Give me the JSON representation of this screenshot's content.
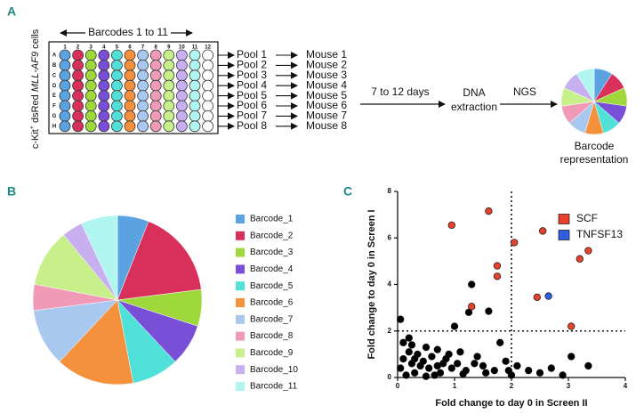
{
  "panel_labels": [
    "A",
    "B",
    "C"
  ],
  "diagram": {
    "barcodes_label": "Barcodes 1 to 11",
    "cell_label": {
      "prefix": "c-Kit",
      "superscript": "+",
      "middle": " dsRed ",
      "italic": "MLL-AF9",
      "suffix": " cells"
    },
    "row_labels": [
      "A",
      "B",
      "C",
      "D",
      "E",
      "F",
      "G",
      "H"
    ],
    "column_labels": [
      "1",
      "2",
      "3",
      "4",
      "5",
      "6",
      "7",
      "8",
      "9",
      "10",
      "11",
      "12"
    ],
    "pools": [
      "Pool 1",
      "Pool 2",
      "Pool 3",
      "Pool 4",
      "Pool 5",
      "Pool 6",
      "Pool 7",
      "Pool 8"
    ],
    "mice": [
      "Mouse 1",
      "Mouse 2",
      "Mouse 3",
      "Mouse 4",
      "Mouse 5",
      "Mouse 6",
      "Mouse 7",
      "Mouse 8"
    ],
    "duration": "7 to 12 days",
    "extraction": [
      "DNA",
      "extraction"
    ],
    "ngs": "NGS",
    "result": [
      "Barcode",
      "representation"
    ]
  },
  "chart_data": [
    {
      "type": "pie",
      "categories": [
        "Barcode_1",
        "Barcode_2",
        "Barcode_3",
        "Barcode_4",
        "Barcode_5",
        "Barcode_6",
        "Barcode_7",
        "Barcode_8",
        "Barcode_9",
        "Barcode_10",
        "Barcode_11"
      ],
      "values": [
        6,
        17,
        7,
        8,
        9,
        15,
        11,
        5,
        11,
        4,
        7
      ],
      "colors": [
        "#5ba3e0",
        "#d8305a",
        "#9ed83a",
        "#7a4fd8",
        "#4fe0d8",
        "#f5913c",
        "#a8c8f0",
        "#f09ab8",
        "#c8f08a",
        "#c8b0f0",
        "#b0f5f0"
      ],
      "legend": "right"
    },
    {
      "type": "scatter",
      "xlabel": "Fold change to day 0 in Screen II",
      "ylabel": "Fold change to day 0 in Screen I",
      "xlim": [
        0,
        4
      ],
      "ylim": [
        0,
        8
      ],
      "xticks": [
        0,
        1,
        2,
        3,
        4
      ],
      "yticks": [
        0,
        2,
        4,
        6,
        8
      ],
      "reference_lines": {
        "x": 2,
        "y": 2
      },
      "legend": "upper right",
      "series": [
        {
          "color": "#000000",
          "x": [
            1.3,
            1.25,
            1.0,
            1.6,
            0.05,
            0.2,
            0.25,
            0.5,
            0.7,
            0.9,
            1.1,
            1.4,
            1.8,
            1.9,
            2.1,
            2.3,
            2.5,
            2.7,
            2.9,
            3.05,
            3.35,
            1.5,
            1.7,
            0.8,
            0.6,
            0.4,
            0.3,
            0.1,
            0.15,
            0.05,
            0.35,
            0.55,
            0.75,
            0.95,
            1.2,
            1.35,
            0.45,
            0.65,
            0.85,
            1.05,
            0.25,
            0.5,
            0.2,
            0.1,
            1.55,
            2.0,
            1.95,
            0.7,
            0.3,
            1.15
          ],
          "y": [
            4.0,
            2.8,
            2.2,
            2.85,
            2.5,
            1.7,
            1.4,
            1.3,
            1.2,
            1.0,
            1.1,
            0.9,
            1.5,
            0.7,
            0.5,
            0.3,
            0.2,
            0.4,
            0.1,
            0.9,
            0.5,
            0.5,
            0.3,
            0.6,
            0.9,
            0.5,
            0.2,
            0.8,
            0.1,
            0.4,
            1.0,
            0.4,
            0.2,
            0.4,
            0.3,
            0.6,
            0.7,
            0.1,
            0.8,
            0.6,
            0.6,
            0.05,
            1.1,
            1.5,
            0.2,
            0.1,
            0.3,
            0.5,
            0.8,
            0.15
          ]
        },
        {
          "name": "SCF",
          "color": "#e8412c",
          "x": [
            0.95,
            1.6,
            2.05,
            2.55,
            1.75,
            1.75,
            1.3,
            3.35,
            3.2,
            2.45,
            3.05
          ],
          "y": [
            6.55,
            7.15,
            5.8,
            6.3,
            4.8,
            4.35,
            3.05,
            5.45,
            5.1,
            3.45,
            2.2
          ]
        },
        {
          "name": "TNFSF13",
          "color": "#2f5fe0",
          "x": [
            2.65
          ],
          "y": [
            3.5
          ]
        }
      ]
    }
  ]
}
